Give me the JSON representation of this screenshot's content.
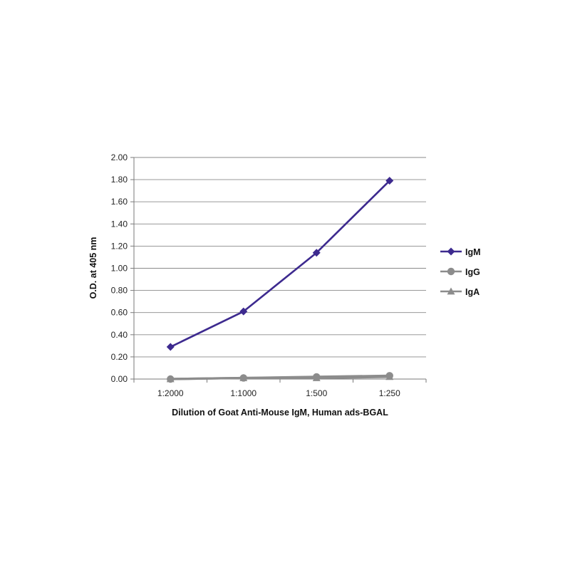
{
  "chart_data": {
    "type": "line",
    "title": "",
    "xlabel": "Dilution of Goat Anti-Mouse IgM, Human ads-BGAL",
    "ylabel": "O.D. at 405 nm",
    "categories": [
      "1:2000",
      "1:1000",
      "1:500",
      "1:250"
    ],
    "ylim": [
      0,
      2.0
    ],
    "yticks": [
      "0.00",
      "0.20",
      "0.40",
      "0.60",
      "0.80",
      "1.00",
      "1.20",
      "1.40",
      "1.60",
      "1.80",
      "2.00"
    ],
    "grid": true,
    "legend_position": "right",
    "series": [
      {
        "name": "IgM",
        "values": [
          0.29,
          0.61,
          1.14,
          1.79
        ],
        "color": "#3d2a8f",
        "marker": "diamond"
      },
      {
        "name": "IgG",
        "values": [
          0.0,
          0.01,
          0.02,
          0.03
        ],
        "color": "#8c8c8c",
        "marker": "circle"
      },
      {
        "name": "IgA",
        "values": [
          0.0,
          0.01,
          0.01,
          0.02
        ],
        "color": "#8c8c8c",
        "marker": "triangle"
      }
    ]
  }
}
